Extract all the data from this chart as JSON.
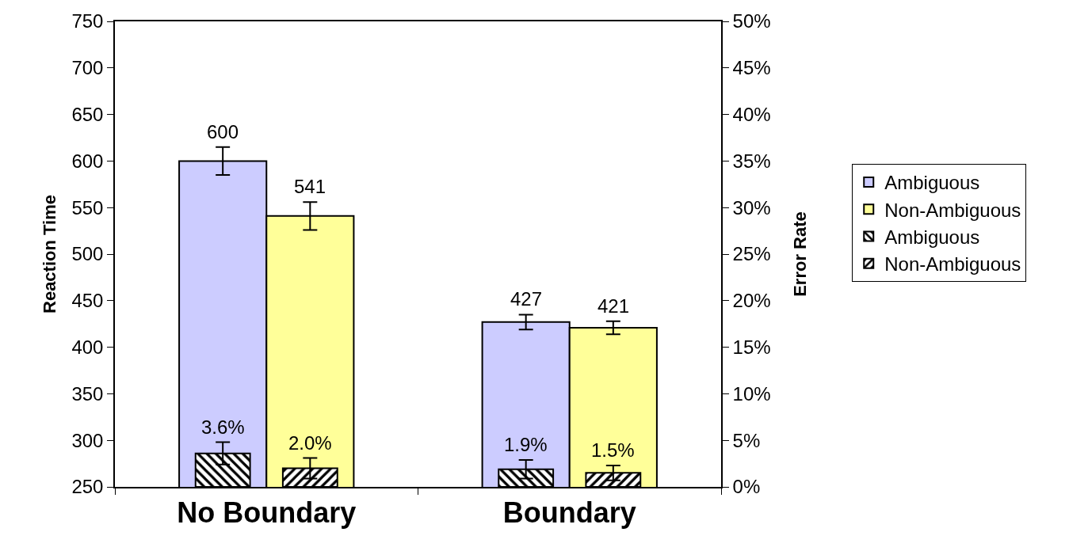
{
  "chart_data": {
    "type": "bar",
    "categories": [
      "No Boundary",
      "Boundary"
    ],
    "ylabel": "Reaction Time",
    "y2label": "Error Rate",
    "ylim": [
      250,
      750
    ],
    "yticks": [
      250,
      300,
      350,
      400,
      450,
      500,
      550,
      600,
      650,
      700,
      750
    ],
    "y2lim": [
      0,
      50
    ],
    "y2ticks": [
      {
        "value": 0,
        "label": "0%"
      },
      {
        "value": 5,
        "label": "5%"
      },
      {
        "value": 10,
        "label": "10%"
      },
      {
        "value": 15,
        "label": "15%"
      },
      {
        "value": 20,
        "label": "20%"
      },
      {
        "value": 25,
        "label": "25%"
      },
      {
        "value": 30,
        "label": "30%"
      },
      {
        "value": 35,
        "label": "35%"
      },
      {
        "value": 40,
        "label": "40%"
      },
      {
        "value": 45,
        "label": "45%"
      },
      {
        "value": 50,
        "label": "50%"
      }
    ],
    "series": [
      {
        "name": "Ambiguous",
        "color": "#ccccff",
        "values": [
          600,
          427
        ],
        "errors": [
          15,
          8
        ],
        "value_labels": [
          "600",
          "427"
        ]
      },
      {
        "name": "Non-Ambiguous",
        "color": "#ffff99",
        "values": [
          541,
          421
        ],
        "errors": [
          15,
          7
        ],
        "value_labels": [
          "541",
          "421"
        ]
      },
      {
        "name": "Ambiguous",
        "color": "#000000",
        "axis": "y2",
        "values": [
          3.6,
          1.9
        ],
        "errors": [
          1.2,
          1.0
        ],
        "value_labels": [
          "3.6%",
          "1.9%"
        ]
      },
      {
        "name": "Non-Ambiguous",
        "color": "#000000",
        "axis": "y2",
        "values": [
          2.0,
          1.5
        ],
        "errors": [
          1.1,
          0.8
        ],
        "value_labels": [
          "2.0%",
          "1.5%"
        ]
      }
    ],
    "grid": false,
    "legend": "right"
  }
}
